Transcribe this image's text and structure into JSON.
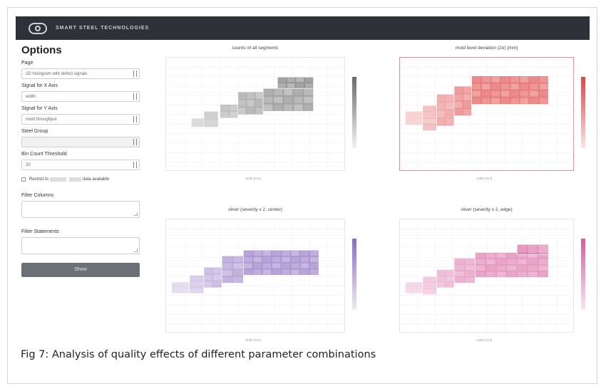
{
  "header": {
    "brand": "SMART STEEL TECHNOLOGIES"
  },
  "sidebar": {
    "title": "Options",
    "page_label": "Page",
    "page_value": "2D histogram with defect signals",
    "x_label": "Signal for X Axis",
    "x_value": "width",
    "y_label": "Signal for Y Axis",
    "y_value": "mold throughput",
    "steel_group_label": "Steel Group",
    "steel_group_value": "",
    "bin_label": "Bin Count Threshold",
    "bin_value": "20",
    "restrict_pre": "Restrict to",
    "restrict_post": "data available",
    "filter_columns_label": "Filter Columns",
    "filter_statements_label": "Filter Statements",
    "show_button": "Show"
  },
  "charts": [
    {
      "id": "counts",
      "title": "counts of all segments",
      "palette": "gray",
      "xlabel": "width [mm]"
    },
    {
      "id": "mold",
      "title": "mold level deviation (2σ) [mm]",
      "palette": "red",
      "xlabel": "width [mm]"
    },
    {
      "id": "sliver-center",
      "title": "sliver (severity x 2, center)",
      "palette": "purple",
      "xlabel": "width [mm]"
    },
    {
      "id": "sliver-edge",
      "title": "sliver (severity x 2, edge)",
      "palette": "pink",
      "xlabel": "width [mm]"
    }
  ],
  "caption": "Fig 7: Analysis of quality effects of different parameter combinations",
  "colors": {
    "gray": [
      "#f3f3f3",
      "#6a6a6a"
    ],
    "red": [
      "#fbe3e3",
      "#e04545"
    ],
    "purple": [
      "#efeaf6",
      "#8b6cc0"
    ],
    "pink": [
      "#f8e6f0",
      "#d65c9c"
    ]
  }
}
